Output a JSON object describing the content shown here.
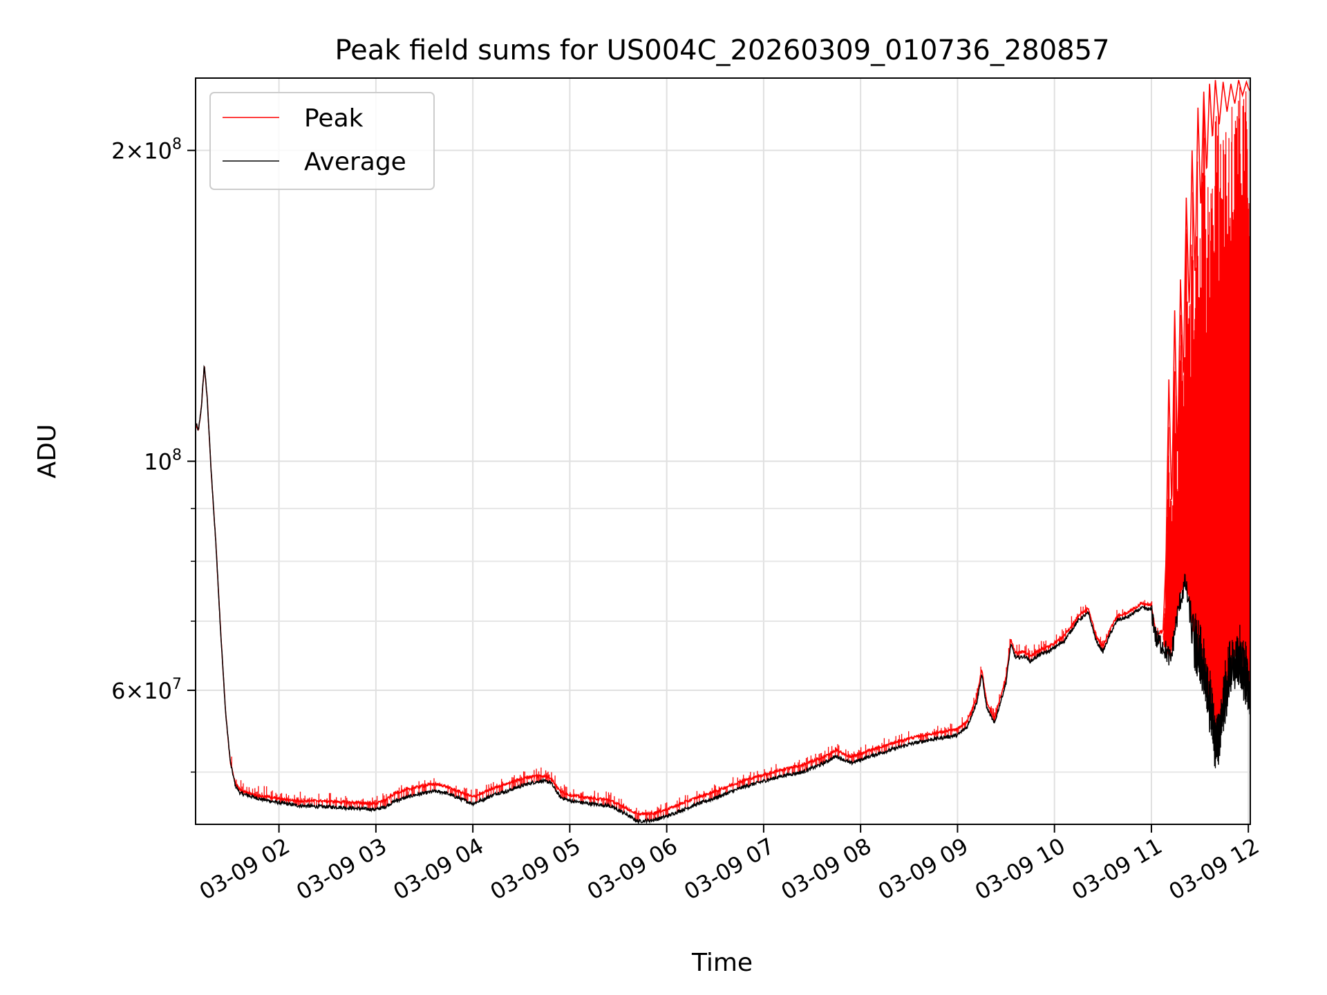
{
  "chart_data": {
    "type": "line",
    "title": "Peak field sums for US004C_20260309_010736_280857",
    "xlabel": "Time",
    "ylabel": "ADU",
    "yscale": "log",
    "grid": true,
    "legend_position": "top-left",
    "colors": {
      "peak": "#ff0000",
      "average": "#000000"
    },
    "x_unit": "hours since 2026-03-09 00:00",
    "xlim": [
      1.14,
      12.02
    ],
    "ylim": [
      44500000,
      235000000
    ],
    "xticks": [
      {
        "value": 2,
        "label": "03-09 02"
      },
      {
        "value": 3,
        "label": "03-09 03"
      },
      {
        "value": 4,
        "label": "03-09 04"
      },
      {
        "value": 5,
        "label": "03-09 05"
      },
      {
        "value": 6,
        "label": "03-09 06"
      },
      {
        "value": 7,
        "label": "03-09 07"
      },
      {
        "value": 8,
        "label": "03-09 08"
      },
      {
        "value": 9,
        "label": "03-09 09"
      },
      {
        "value": 10,
        "label": "03-09 10"
      },
      {
        "value": 11,
        "label": "03-09 11"
      },
      {
        "value": 12,
        "label": "03-09 12"
      }
    ],
    "yticks_major": [
      {
        "value": 60000000,
        "base": "6",
        "exp": "7",
        "mult": true
      },
      {
        "value": 100000000,
        "base": "10",
        "exp": "8",
        "mult": false
      },
      {
        "value": 200000000,
        "base": "2",
        "exp": "8",
        "mult": true
      }
    ],
    "yticks_minor": [
      50000000,
      70000000,
      80000000,
      90000000
    ],
    "series": [
      {
        "name": "Average",
        "points": [
          [
            1.14,
            109000000
          ],
          [
            1.17,
            107000000
          ],
          [
            1.2,
            113000000
          ],
          [
            1.23,
            124000000
          ],
          [
            1.26,
            115000000
          ],
          [
            1.3,
            98000000
          ],
          [
            1.35,
            83000000
          ],
          [
            1.4,
            68000000
          ],
          [
            1.45,
            57000000
          ],
          [
            1.5,
            51000000
          ],
          [
            1.55,
            48500000
          ],
          [
            1.6,
            47700000
          ],
          [
            1.7,
            47400000
          ],
          [
            1.8,
            47100000
          ],
          [
            1.9,
            46900000
          ],
          [
            2.0,
            46700000
          ],
          [
            2.2,
            46400000
          ],
          [
            2.4,
            46300000
          ],
          [
            2.6,
            46250000
          ],
          [
            2.8,
            46100000
          ],
          [
            3.0,
            46000000
          ],
          [
            3.1,
            46300000
          ],
          [
            3.2,
            46900000
          ],
          [
            3.4,
            47500000
          ],
          [
            3.6,
            47900000
          ],
          [
            3.7,
            47800000
          ],
          [
            3.85,
            47200000
          ],
          [
            4.0,
            46600000
          ],
          [
            4.1,
            47000000
          ],
          [
            4.25,
            47700000
          ],
          [
            4.35,
            47900000
          ],
          [
            4.45,
            48300000
          ],
          [
            4.6,
            48800000
          ],
          [
            4.7,
            49000000
          ],
          [
            4.8,
            48900000
          ],
          [
            4.9,
            47300000
          ],
          [
            5.0,
            46900000
          ],
          [
            5.2,
            46600000
          ],
          [
            5.4,
            46400000
          ],
          [
            5.55,
            45700000
          ],
          [
            5.7,
            44800000
          ],
          [
            5.85,
            44900000
          ],
          [
            6.0,
            45300000
          ],
          [
            6.1,
            45700000
          ],
          [
            6.3,
            46500000
          ],
          [
            6.5,
            47200000
          ],
          [
            6.6,
            47600000
          ],
          [
            6.8,
            48400000
          ],
          [
            7.0,
            49000000
          ],
          [
            7.2,
            49600000
          ],
          [
            7.4,
            50000000
          ],
          [
            7.6,
            50900000
          ],
          [
            7.75,
            51800000
          ],
          [
            7.9,
            51000000
          ],
          [
            8.1,
            51800000
          ],
          [
            8.3,
            52500000
          ],
          [
            8.5,
            53200000
          ],
          [
            8.7,
            53700000
          ],
          [
            9.0,
            54300000
          ],
          [
            9.1,
            55300000
          ],
          [
            9.2,
            58500000
          ],
          [
            9.25,
            62200000
          ],
          [
            9.3,
            57800000
          ],
          [
            9.38,
            55700000
          ],
          [
            9.5,
            61000000
          ],
          [
            9.55,
            66500000
          ],
          [
            9.6,
            64500000
          ],
          [
            9.7,
            64700000
          ],
          [
            9.75,
            64000000
          ],
          [
            9.85,
            65000000
          ],
          [
            9.95,
            65500000
          ],
          [
            10.1,
            67000000
          ],
          [
            10.25,
            70200000
          ],
          [
            10.35,
            71300000
          ],
          [
            10.43,
            67000000
          ],
          [
            10.5,
            65400000
          ],
          [
            10.58,
            68200000
          ],
          [
            10.65,
            70200000
          ],
          [
            10.75,
            70600000
          ],
          [
            10.9,
            72100000
          ],
          [
            11.0,
            71800000
          ],
          [
            11.05,
            67200000
          ],
          [
            11.12,
            66300000
          ],
          [
            11.2,
            64200000
          ],
          [
            11.25,
            69400000
          ],
          [
            11.3,
            73500000
          ],
          [
            11.35,
            76300000
          ],
          [
            11.4,
            71000000
          ],
          [
            11.45,
            65800000
          ],
          [
            11.5,
            64000000
          ],
          [
            11.55,
            62200000
          ],
          [
            11.62,
            56400000
          ],
          [
            11.66,
            53000000
          ],
          [
            11.7,
            54200000
          ],
          [
            11.75,
            58200000
          ],
          [
            11.8,
            61400000
          ],
          [
            11.85,
            63700000
          ],
          [
            11.9,
            64300000
          ],
          [
            11.95,
            62400000
          ],
          [
            12.0,
            60700000
          ],
          [
            12.02,
            59500000
          ]
        ]
      },
      {
        "name": "Peak",
        "points": [
          [
            1.14,
            109000000
          ],
          [
            1.17,
            107000000
          ],
          [
            1.2,
            113000000
          ],
          [
            1.23,
            124000000
          ],
          [
            1.26,
            115000000
          ],
          [
            1.3,
            98000000
          ],
          [
            1.35,
            83000000
          ],
          [
            1.4,
            68000000
          ],
          [
            1.45,
            57000000
          ],
          [
            1.5,
            51000000
          ],
          [
            1.55,
            48800000
          ],
          [
            1.6,
            48000000
          ],
          [
            1.7,
            47700000
          ],
          [
            1.8,
            47400000
          ],
          [
            1.9,
            47300000
          ],
          [
            2.0,
            47100000
          ],
          [
            2.2,
            46900000
          ],
          [
            2.4,
            46900000
          ],
          [
            2.6,
            46800000
          ],
          [
            2.8,
            46700000
          ],
          [
            3.0,
            46600000
          ],
          [
            3.1,
            47000000
          ],
          [
            3.2,
            47700000
          ],
          [
            3.4,
            48300000
          ],
          [
            3.6,
            48700000
          ],
          [
            3.7,
            48500000
          ],
          [
            3.85,
            47900000
          ],
          [
            4.0,
            47300000
          ],
          [
            4.1,
            47700000
          ],
          [
            4.25,
            48400000
          ],
          [
            4.35,
            48700000
          ],
          [
            4.45,
            49100000
          ],
          [
            4.6,
            49500000
          ],
          [
            4.7,
            49600000
          ],
          [
            4.8,
            49400000
          ],
          [
            4.9,
            47900000
          ],
          [
            5.0,
            47500000
          ],
          [
            5.2,
            47200000
          ],
          [
            5.4,
            47000000
          ],
          [
            5.55,
            46300000
          ],
          [
            5.7,
            45500000
          ],
          [
            5.85,
            45600000
          ],
          [
            6.0,
            46000000
          ],
          [
            6.1,
            46400000
          ],
          [
            6.3,
            47200000
          ],
          [
            6.5,
            47900000
          ],
          [
            6.6,
            48300000
          ],
          [
            6.8,
            49100000
          ],
          [
            7.0,
            49700000
          ],
          [
            7.2,
            50300000
          ],
          [
            7.4,
            50800000
          ],
          [
            7.6,
            51600000
          ],
          [
            7.75,
            52500000
          ],
          [
            7.9,
            51700000
          ],
          [
            8.1,
            52500000
          ],
          [
            8.3,
            53200000
          ],
          [
            8.5,
            53900000
          ],
          [
            8.7,
            54400000
          ],
          [
            9.0,
            55000000
          ],
          [
            9.1,
            56000000
          ],
          [
            9.2,
            59200000
          ],
          [
            9.25,
            62900000
          ],
          [
            9.3,
            58500000
          ],
          [
            9.38,
            56400000
          ],
          [
            9.5,
            61700000
          ],
          [
            9.55,
            67200000
          ],
          [
            9.6,
            65200000
          ],
          [
            9.7,
            65400000
          ],
          [
            9.75,
            64700000
          ],
          [
            9.85,
            65700000
          ],
          [
            9.95,
            66200000
          ],
          [
            10.1,
            67700000
          ],
          [
            10.25,
            70900000
          ],
          [
            10.35,
            72000000
          ],
          [
            10.43,
            67700000
          ],
          [
            10.5,
            66100000
          ],
          [
            10.58,
            68900000
          ],
          [
            10.65,
            70900000
          ],
          [
            10.75,
            71300000
          ],
          [
            10.9,
            72800000
          ],
          [
            11.0,
            72500000
          ],
          [
            11.05,
            68000000
          ],
          [
            11.12,
            68500000
          ],
          [
            11.15,
            80000000
          ],
          [
            11.18,
            120000000
          ],
          [
            11.21,
            90000000
          ],
          [
            11.24,
            140000000
          ],
          [
            11.27,
            100000000
          ],
          [
            11.3,
            150000000
          ],
          [
            11.33,
            120000000
          ],
          [
            11.36,
            180000000
          ],
          [
            11.39,
            140000000
          ],
          [
            11.42,
            200000000
          ],
          [
            11.45,
            150000000
          ],
          [
            11.48,
            220000000
          ],
          [
            11.51,
            175000000
          ],
          [
            11.54,
            228000000
          ],
          [
            11.57,
            190000000
          ],
          [
            11.6,
            232000000
          ],
          [
            11.63,
            205000000
          ],
          [
            11.66,
            234000000
          ],
          [
            11.7,
            212000000
          ],
          [
            11.74,
            233000000
          ],
          [
            11.78,
            218000000
          ],
          [
            11.82,
            232000000
          ],
          [
            11.86,
            222000000
          ],
          [
            11.9,
            234000000
          ],
          [
            11.94,
            226000000
          ],
          [
            11.98,
            233000000
          ],
          [
            12.0,
            230000000
          ],
          [
            12.02,
            228000000
          ]
        ]
      }
    ]
  }
}
